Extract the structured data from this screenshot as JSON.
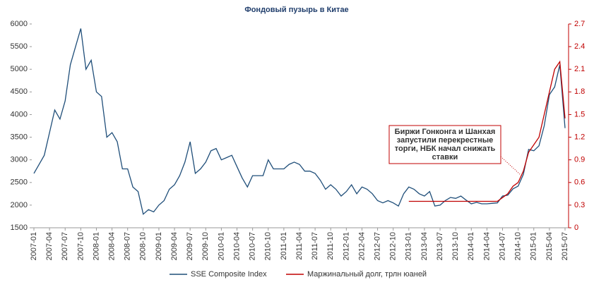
{
  "chart_data": {
    "type": "line",
    "title": "Фондовый пузырь в Китае",
    "categories": [
      "2007-01",
      null,
      null,
      "2007-04",
      null,
      null,
      "2007-07",
      null,
      null,
      "2007-10",
      null,
      null,
      "2008-01",
      null,
      null,
      "2008-04",
      null,
      null,
      "2008-07",
      null,
      null,
      "2008-10",
      null,
      null,
      "2009-01",
      null,
      null,
      "2009-04",
      null,
      null,
      "2009-07",
      null,
      null,
      "2009-10",
      null,
      null,
      "2010-01",
      null,
      null,
      "2010-04",
      null,
      null,
      "2010-07",
      null,
      null,
      "2010-10",
      null,
      null,
      "2011-01",
      null,
      null,
      "2011-04",
      null,
      null,
      "2011-07",
      null,
      null,
      "2011-10",
      null,
      null,
      "2012-01",
      null,
      null,
      "2012-04",
      null,
      null,
      "2012-07",
      null,
      null,
      "2012-10",
      null,
      null,
      "2013-01",
      null,
      null,
      "2013-04",
      null,
      null,
      "2013-07",
      null,
      null,
      "2013-10",
      null,
      null,
      "2014-01",
      null,
      null,
      "2014-04",
      null,
      null,
      "2014-07",
      null,
      null,
      "2014-10",
      null,
      null,
      "2015-01",
      null,
      null,
      "2015-04",
      null,
      null,
      "2015-07"
    ],
    "series": [
      {
        "name": "SSE Composite Index",
        "color": "#1f4e79",
        "axis": "y",
        "values": [
          2700,
          2900,
          3100,
          3600,
          4100,
          3900,
          4300,
          5100,
          5500,
          5900,
          5000,
          5200,
          4500,
          4400,
          3500,
          3600,
          3400,
          2800,
          2800,
          2400,
          2300,
          1800,
          1900,
          1850,
          2000,
          2100,
          2350,
          2450,
          2650,
          2950,
          3400,
          2700,
          2800,
          2950,
          3200,
          3250,
          3000,
          3050,
          3100,
          2850,
          2600,
          2400,
          2650,
          2650,
          2650,
          3000,
          2800,
          2800,
          2800,
          2900,
          2950,
          2900,
          2750,
          2750,
          2700,
          2550,
          2350,
          2450,
          2350,
          2200,
          2300,
          2450,
          2250,
          2400,
          2350,
          2250,
          2100,
          2050,
          2100,
          2050,
          1980,
          2250,
          2400,
          2350,
          2250,
          2200,
          2300,
          1980,
          2000,
          2100,
          2170,
          2150,
          2200,
          2110,
          2030,
          2060,
          2030,
          2030,
          2040,
          2050,
          2200,
          2220,
          2360,
          2420,
          2680,
          3230,
          3200,
          3310,
          3750,
          4440,
          4610,
          5100,
          3700
        ]
      },
      {
        "name": "Маржинальный долг, трлн юаней",
        "color": "#c00000",
        "axis": "y2",
        "values": [
          null,
          null,
          null,
          null,
          null,
          null,
          null,
          null,
          null,
          null,
          null,
          null,
          null,
          null,
          null,
          null,
          null,
          null,
          null,
          null,
          null,
          null,
          null,
          null,
          null,
          null,
          null,
          null,
          null,
          null,
          null,
          null,
          null,
          null,
          null,
          null,
          null,
          null,
          null,
          null,
          null,
          null,
          null,
          null,
          null,
          null,
          null,
          null,
          null,
          null,
          null,
          null,
          null,
          null,
          null,
          null,
          null,
          null,
          null,
          null,
          null,
          null,
          null,
          null,
          null,
          null,
          null,
          null,
          null,
          null,
          null,
          null,
          0.35,
          0.35,
          0.35,
          0.35,
          0.35,
          0.35,
          0.35,
          0.35,
          0.35,
          0.35,
          0.35,
          0.35,
          0.35,
          0.35,
          0.35,
          0.35,
          0.35,
          0.35,
          0.4,
          0.45,
          0.55,
          0.6,
          0.75,
          1.0,
          1.1,
          1.2,
          1.5,
          1.8,
          2.1,
          2.2,
          1.45
        ]
      }
    ],
    "ylim": [
      1500,
      6000
    ],
    "yticks": [
      1500,
      2000,
      2500,
      3000,
      3500,
      4000,
      4500,
      5000,
      5500,
      6000
    ],
    "y2lim": [
      0,
      2.7
    ],
    "y2ticks": [
      0,
      0.3,
      0.6,
      0.9,
      1.2,
      1.5,
      1.8,
      2.1,
      2.4,
      2.7
    ],
    "annotation": [
      "Биржи Гонконга и Шанхая",
      "запустили перекрестные",
      "торги, НБК начал снижать",
      "ставки"
    ]
  }
}
